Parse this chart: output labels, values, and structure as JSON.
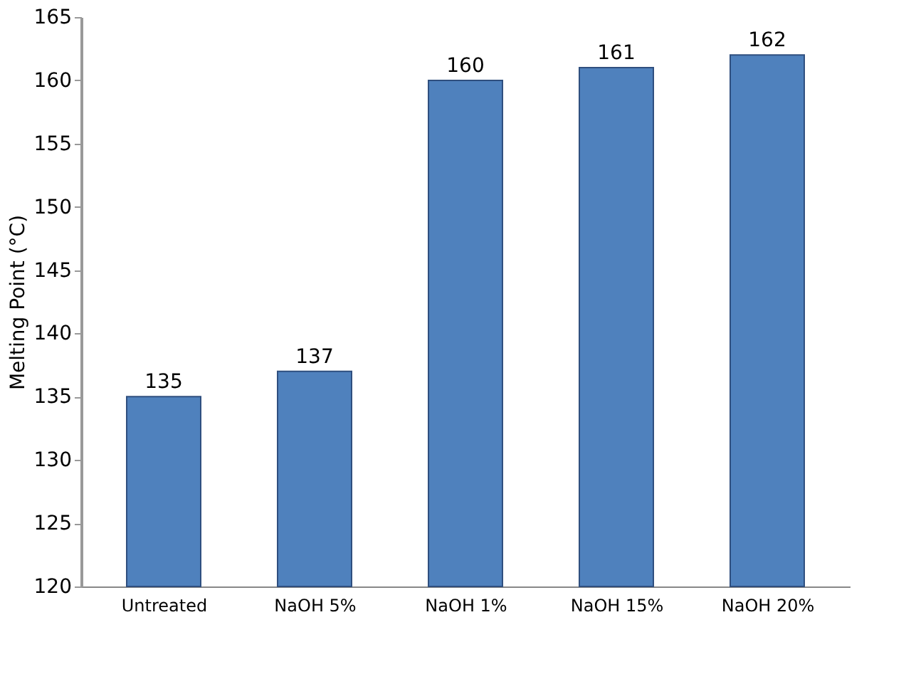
{
  "chart_data": {
    "type": "bar",
    "ylabel": "Melting Point (°C)",
    "categories": [
      "Untreated",
      "NaOH 5%",
      "NaOH 1%",
      "NaOH 15%",
      "NaOH 20%"
    ],
    "values": [
      135,
      137,
      160,
      161,
      162
    ],
    "color": "#4f81bd",
    "ylim": [
      120,
      165
    ],
    "yticks": [
      120,
      125,
      130,
      135,
      140,
      145,
      150,
      155,
      160,
      165
    ],
    "data_labels": true,
    "grid": false
  }
}
